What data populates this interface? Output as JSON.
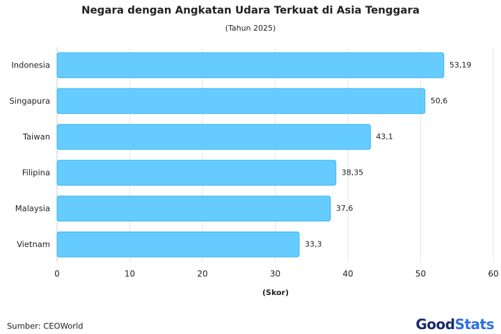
{
  "chart_data": {
    "type": "barh",
    "title": "Negara dengan Angkatan Udara Terkuat di Asia Tenggara",
    "subtitle": "(Tahun 2025)",
    "categories": [
      "Indonesia",
      "Singapura",
      "Taiwan",
      "Filipina",
      "Malaysia",
      "Vietnam"
    ],
    "values": [
      53.19,
      50.6,
      43.1,
      38.35,
      37.6,
      33.3
    ],
    "value_labels": [
      "53,19",
      "50,6",
      "43,1",
      "38,35",
      "37,6",
      "33,3"
    ],
    "color": "#66ccff",
    "xlim": [
      0,
      60
    ],
    "xticks": [
      0,
      10,
      20,
      30,
      40,
      50,
      60
    ],
    "xlabel": "(Skor)",
    "grid": true
  },
  "source": "Sumber: CEOWorld",
  "brand": [
    "Good",
    "Stats"
  ]
}
